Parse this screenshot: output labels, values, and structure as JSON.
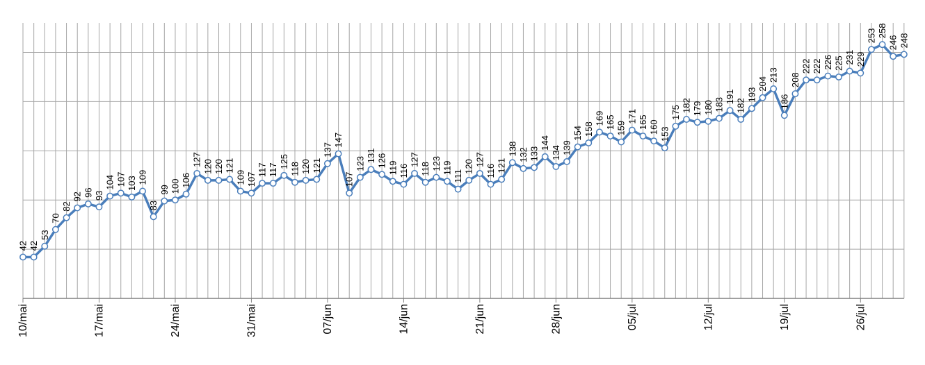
{
  "chart_data": {
    "type": "line",
    "categories": [
      "10/mai",
      null,
      null,
      null,
      null,
      null,
      null,
      "17/mai",
      null,
      null,
      null,
      null,
      null,
      null,
      "24/mai",
      null,
      null,
      null,
      null,
      null,
      null,
      "31/mai",
      null,
      null,
      null,
      null,
      null,
      null,
      "07/jun",
      null,
      null,
      null,
      null,
      null,
      null,
      "14/jun",
      null,
      null,
      null,
      null,
      null,
      null,
      "21/jun",
      null,
      null,
      null,
      null,
      null,
      null,
      "28/jun",
      null,
      null,
      null,
      null,
      null,
      null,
      "05/jul",
      null,
      null,
      null,
      null,
      null,
      null,
      "12/jul",
      null,
      null,
      null,
      null,
      null,
      null,
      "19/jul",
      null,
      null,
      null,
      null,
      null,
      null,
      "26/jul",
      null,
      null,
      null,
      null
    ],
    "series": [
      {
        "color": "#4a7ebb",
        "values": [
          42,
          42,
          53,
          70,
          82,
          92,
          96,
          93,
          104,
          107,
          103,
          109,
          83,
          99,
          100,
          106,
          127,
          120,
          120,
          121,
          109,
          107,
          117,
          117,
          125,
          118,
          120,
          121,
          137,
          147,
          107,
          123,
          131,
          126,
          119,
          116,
          127,
          118,
          123,
          119,
          111,
          120,
          127,
          116,
          121,
          138,
          132,
          133,
          144,
          134,
          139,
          154,
          158,
          169,
          165,
          159,
          171,
          165,
          160,
          153,
          175,
          182,
          179,
          180,
          183,
          191,
          182,
          193,
          204,
          213,
          186,
          208,
          222,
          222,
          226,
          225,
          231,
          229,
          253,
          258,
          246,
          248
        ]
      }
    ],
    "ylim": [
      0,
      280
    ],
    "yticks": [
      0,
      50,
      100,
      150,
      200,
      250
    ],
    "grid": true
  }
}
